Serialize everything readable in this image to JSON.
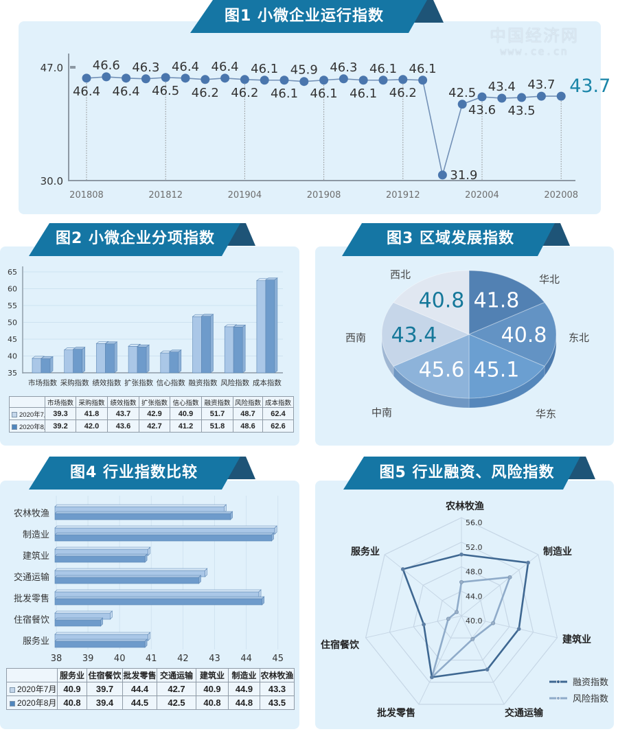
{
  "watermark": {
    "name": "中国经济网",
    "url": "www.ce.cn"
  },
  "legend_swatches": {
    "july": "#c3d6ea",
    "august": "#4f86bd"
  },
  "chart_data": [
    {
      "type": "line",
      "title": "图1  小微企业运行指数",
      "x": [
        "201808",
        "201809",
        "201810",
        "201811",
        "201812",
        "201901",
        "201902",
        "201903",
        "201904",
        "201905",
        "201906",
        "201907",
        "201908",
        "201909",
        "201910",
        "201911",
        "201912",
        "202001",
        "202002",
        "202003",
        "202004",
        "202005",
        "202006",
        "202007",
        "202008"
      ],
      "values": [
        46.4,
        46.6,
        46.4,
        46.3,
        46.5,
        46.4,
        46.2,
        46.4,
        46.2,
        46.1,
        46.1,
        45.9,
        46.1,
        46.3,
        46.1,
        46.1,
        46.2,
        46.1,
        31.9,
        42.5,
        43.6,
        43.4,
        43.5,
        43.7,
        43.7
      ],
      "x_tick_labels": [
        "201808",
        "201812",
        "201904",
        "201908",
        "201912",
        "202004",
        "202008"
      ],
      "y_tick_labels": [
        "47.0",
        "30.0"
      ],
      "ylim": [
        30,
        47
      ],
      "label_positions": [
        "below",
        "above",
        "below",
        "above",
        "below",
        "above",
        "below",
        "above",
        "below",
        "above",
        "below",
        "above",
        "below",
        "above",
        "below",
        "above",
        "below",
        "above",
        "right",
        "above",
        "below",
        "above",
        "below",
        "above",
        "right-highlight"
      ],
      "xlabel": "",
      "ylabel": "",
      "grid": false,
      "colors": {
        "line": "#7290b6",
        "point": "#4a76ad",
        "highlight": "#1a85a8"
      }
    },
    {
      "type": "bar",
      "title": "图2 小微企业分项指数",
      "categories": [
        "市场指数",
        "采购指数",
        "绩效指数",
        "扩张指数",
        "信心指数",
        "融资指数",
        "风险指数",
        "成本指数"
      ],
      "series": [
        {
          "name": "2020年7月",
          "values": [
            39.3,
            41.8,
            43.7,
            42.9,
            40.9,
            51.7,
            48.7,
            62.4
          ]
        },
        {
          "name": "2020年8月",
          "values": [
            39.2,
            42.0,
            43.6,
            42.7,
            41.2,
            51.8,
            48.6,
            62.6
          ]
        }
      ],
      "ylim": [
        35,
        65
      ],
      "y_ticks": [
        35,
        40,
        45,
        50,
        55,
        60,
        65
      ],
      "grid": true,
      "table": {
        "columns": [
          "市场指数",
          "采购指数",
          "绩效指数",
          "扩张指数",
          "信心指数",
          "融资指数",
          "风险指数",
          "成本指数"
        ],
        "rows": [
          {
            "label": "2020年7月",
            "values": [
              39.3,
              41.8,
              43.7,
              42.9,
              40.9,
              51.7,
              48.7,
              62.4
            ]
          },
          {
            "label": "2020年8月",
            "values": [
              39.2,
              42.0,
              43.6,
              42.7,
              41.2,
              51.8,
              48.6,
              62.6
            ]
          }
        ]
      }
    },
    {
      "type": "pie",
      "title": "图3 区域发展指数",
      "equal_slices": true,
      "slices": [
        {
          "label": "华北",
          "value": 41.8,
          "color": "#5281b3",
          "side": "#3f6c9d",
          "text": "#ffffff"
        },
        {
          "label": "东北",
          "value": 40.8,
          "color": "#6393c4",
          "side": "#4b7aad",
          "text": "#ffffff"
        },
        {
          "label": "华东",
          "value": 45.1,
          "color": "#6b9fd1",
          "side": "#5587bb",
          "text": "#ffffff"
        },
        {
          "label": "中南",
          "value": 45.6,
          "color": "#8db3da",
          "side": "#6f97c3",
          "text": "#ffffff"
        },
        {
          "label": "西南",
          "value": 43.4,
          "color": "#c6d6e9",
          "side": "#9fb7d3",
          "text": "#16789a"
        },
        {
          "label": "西北",
          "value": 40.8,
          "color": "#e0e7f1",
          "side": "#b9c8da",
          "text": "#16789a"
        }
      ]
    },
    {
      "type": "bar",
      "orientation": "horizontal",
      "title": "图4 行业指数比较",
      "categories": [
        "农林牧渔",
        "制造业",
        "建筑业",
        "交通运输",
        "批发零售",
        "住宿餐饮",
        "服务业"
      ],
      "series": [
        {
          "name": "2020年7月",
          "values": [
            43.3,
            44.9,
            40.9,
            42.7,
            44.4,
            39.7,
            40.9
          ]
        },
        {
          "name": "2020年8月",
          "values": [
            43.5,
            44.8,
            40.8,
            42.5,
            44.5,
            39.4,
            40.8
          ]
        }
      ],
      "xlim": [
        38,
        45
      ],
      "x_ticks": [
        38,
        39,
        40,
        41,
        42,
        43,
        44,
        45
      ],
      "grid": true,
      "table": {
        "columns": [
          "服务业",
          "住宿餐饮",
          "批发零售",
          "交通运输",
          "建筑业",
          "制造业",
          "农林牧渔"
        ],
        "rows": [
          {
            "label": "2020年7月",
            "values": [
              40.9,
              39.7,
              44.4,
              42.7,
              40.9,
              44.9,
              43.3
            ]
          },
          {
            "label": "2020年8月",
            "values": [
              40.8,
              39.4,
              44.5,
              42.5,
              40.8,
              44.8,
              43.5
            ]
          }
        ]
      }
    },
    {
      "type": "radar",
      "title": "图5 行业融资、风险指数",
      "axes": [
        "农林牧渔",
        "制造业",
        "建筑业",
        "交通运输",
        "批发零售",
        "住宿餐饮",
        "服务业"
      ],
      "series": [
        {
          "name": "融资指数",
          "values": [
            50.0,
            53.9,
            49.6,
            49.7,
            51.1,
            46.3,
            52.2
          ],
          "color": "#3e6791"
        },
        {
          "name": "风险指数",
          "values": [
            45.5,
            50.1,
            45.3,
            44.2,
            51.1,
            42.2,
            41.0
          ],
          "color": "#8fabc9"
        }
      ],
      "rlim": [
        40,
        56
      ],
      "r_ticks": [
        "40.0",
        "44.0",
        "48.0",
        "52.0",
        "56.0"
      ],
      "legend_position": "bottom-right"
    }
  ]
}
